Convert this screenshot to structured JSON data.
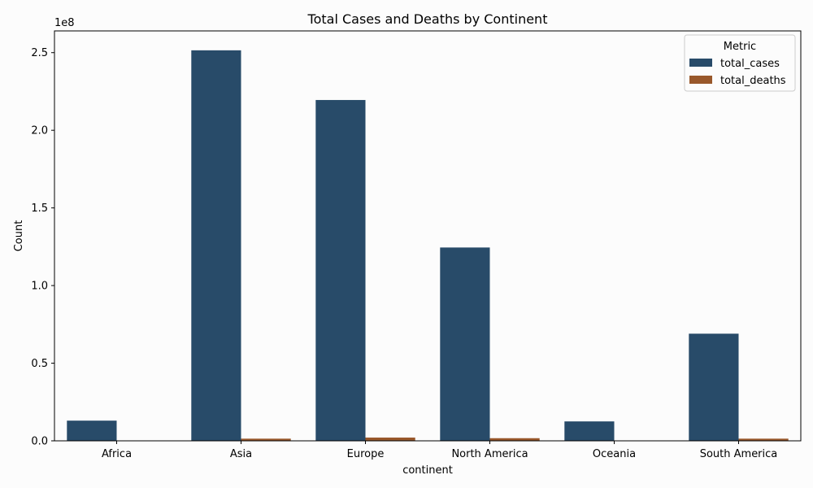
{
  "chart_data": {
    "type": "bar",
    "title": "Total Cases and Deaths by Continent",
    "xlabel": "continent",
    "ylabel": "Count",
    "y_offset_label": "1e8",
    "ylim": [
      0,
      264000000
    ],
    "yticks": [
      0,
      50000000,
      100000000,
      150000000,
      200000000,
      250000000
    ],
    "ytick_labels": [
      "0.0",
      "0.5",
      "1.0",
      "1.5",
      "2.0",
      "2.5"
    ],
    "categories": [
      "Africa",
      "Asia",
      "Europe",
      "North America",
      "Oceania",
      "South America"
    ],
    "series": [
      {
        "name": "total_cases",
        "color": "#284b69",
        "values": [
          13000000,
          251500000,
          219500000,
          124500000,
          12500000,
          69000000
        ]
      },
      {
        "name": "total_deaths",
        "color": "#99582b",
        "values": [
          260000,
          1400000,
          2100000,
          1700000,
          30000,
          1400000
        ]
      }
    ],
    "legend": {
      "title": "Metric",
      "placement": "top-right"
    },
    "grid": false
  }
}
